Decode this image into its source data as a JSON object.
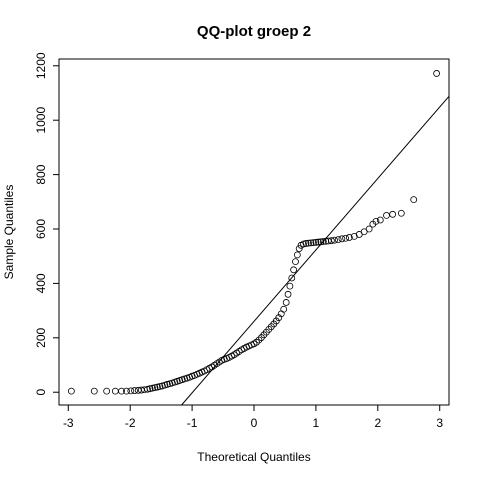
{
  "chart_data": {
    "type": "scatter",
    "title": "QQ-plot groep 2",
    "xlabel": "Theoretical Quantiles",
    "ylabel": "Sample Quantiles",
    "xlim": [
      -3.15,
      3.15
    ],
    "ylim": [
      -47,
      1225
    ],
    "xticks": [
      -3,
      -2,
      -1,
      0,
      1,
      2,
      3
    ],
    "yticks": [
      0,
      200,
      400,
      600,
      800,
      1000,
      1200
    ],
    "grid": false,
    "reference_line": {
      "x1": -1.17,
      "y1": -47,
      "x2": 3.15,
      "y2": 1088
    },
    "points": [
      {
        "x": -2.95,
        "y": 4
      },
      {
        "x": -2.58,
        "y": 4
      },
      {
        "x": -2.38,
        "y": 4
      },
      {
        "x": -2.24,
        "y": 4
      },
      {
        "x": -2.14,
        "y": 4
      },
      {
        "x": -2.06,
        "y": 4
      },
      {
        "x": -1.99,
        "y": 5
      },
      {
        "x": -1.93,
        "y": 6
      },
      {
        "x": -1.87,
        "y": 7
      },
      {
        "x": -1.82,
        "y": 8
      },
      {
        "x": -1.77,
        "y": 9
      },
      {
        "x": -1.72,
        "y": 11
      },
      {
        "x": -1.68,
        "y": 13
      },
      {
        "x": -1.64,
        "y": 15
      },
      {
        "x": -1.6,
        "y": 17
      },
      {
        "x": -1.56,
        "y": 19
      },
      {
        "x": -1.52,
        "y": 21
      },
      {
        "x": -1.48,
        "y": 23
      },
      {
        "x": -1.44,
        "y": 26
      },
      {
        "x": -1.4,
        "y": 29
      },
      {
        "x": -1.36,
        "y": 31
      },
      {
        "x": -1.32,
        "y": 34
      },
      {
        "x": -1.28,
        "y": 37
      },
      {
        "x": -1.24,
        "y": 40
      },
      {
        "x": -1.2,
        "y": 43
      },
      {
        "x": -1.16,
        "y": 46
      },
      {
        "x": -1.12,
        "y": 49
      },
      {
        "x": -1.08,
        "y": 52
      },
      {
        "x": -1.04,
        "y": 55
      },
      {
        "x": -1.0,
        "y": 59
      },
      {
        "x": -0.96,
        "y": 62
      },
      {
        "x": -0.92,
        "y": 66
      },
      {
        "x": -0.88,
        "y": 70
      },
      {
        "x": -0.84,
        "y": 74
      },
      {
        "x": -0.8,
        "y": 78
      },
      {
        "x": -0.76,
        "y": 83
      },
      {
        "x": -0.72,
        "y": 88
      },
      {
        "x": -0.68,
        "y": 93
      },
      {
        "x": -0.64,
        "y": 99
      },
      {
        "x": -0.6,
        "y": 105
      },
      {
        "x": -0.56,
        "y": 111
      },
      {
        "x": -0.52,
        "y": 117
      },
      {
        "x": -0.48,
        "y": 121
      },
      {
        "x": -0.44,
        "y": 124
      },
      {
        "x": -0.4,
        "y": 128
      },
      {
        "x": -0.36,
        "y": 133
      },
      {
        "x": -0.32,
        "y": 138
      },
      {
        "x": -0.28,
        "y": 144
      },
      {
        "x": -0.24,
        "y": 150
      },
      {
        "x": -0.2,
        "y": 156
      },
      {
        "x": -0.16,
        "y": 161
      },
      {
        "x": -0.12,
        "y": 166
      },
      {
        "x": -0.08,
        "y": 170
      },
      {
        "x": -0.04,
        "y": 174
      },
      {
        "x": 0.0,
        "y": 178
      },
      {
        "x": 0.04,
        "y": 184
      },
      {
        "x": 0.08,
        "y": 192
      },
      {
        "x": 0.12,
        "y": 201
      },
      {
        "x": 0.16,
        "y": 211
      },
      {
        "x": 0.2,
        "y": 221
      },
      {
        "x": 0.24,
        "y": 231
      },
      {
        "x": 0.28,
        "y": 241
      },
      {
        "x": 0.32,
        "y": 251
      },
      {
        "x": 0.36,
        "y": 262
      },
      {
        "x": 0.4,
        "y": 274
      },
      {
        "x": 0.44,
        "y": 288
      },
      {
        "x": 0.48,
        "y": 305
      },
      {
        "x": 0.52,
        "y": 330
      },
      {
        "x": 0.55,
        "y": 360
      },
      {
        "x": 0.58,
        "y": 390
      },
      {
        "x": 0.61,
        "y": 420
      },
      {
        "x": 0.64,
        "y": 450
      },
      {
        "x": 0.67,
        "y": 480
      },
      {
        "x": 0.7,
        "y": 505
      },
      {
        "x": 0.73,
        "y": 528
      },
      {
        "x": 0.76,
        "y": 540
      },
      {
        "x": 0.8,
        "y": 545
      },
      {
        "x": 0.84,
        "y": 547
      },
      {
        "x": 0.88,
        "y": 548
      },
      {
        "x": 0.92,
        "y": 549
      },
      {
        "x": 0.96,
        "y": 550
      },
      {
        "x": 1.0,
        "y": 551
      },
      {
        "x": 1.04,
        "y": 552
      },
      {
        "x": 1.08,
        "y": 553
      },
      {
        "x": 1.12,
        "y": 554
      },
      {
        "x": 1.16,
        "y": 555
      },
      {
        "x": 1.2,
        "y": 556
      },
      {
        "x": 1.25,
        "y": 557
      },
      {
        "x": 1.3,
        "y": 559
      },
      {
        "x": 1.36,
        "y": 561
      },
      {
        "x": 1.42,
        "y": 564
      },
      {
        "x": 1.48,
        "y": 566
      },
      {
        "x": 1.54,
        "y": 569
      },
      {
        "x": 1.62,
        "y": 573
      },
      {
        "x": 1.7,
        "y": 580
      },
      {
        "x": 1.78,
        "y": 590
      },
      {
        "x": 1.86,
        "y": 600
      },
      {
        "x": 1.92,
        "y": 618
      },
      {
        "x": 1.97,
        "y": 628
      },
      {
        "x": 2.04,
        "y": 633
      },
      {
        "x": 2.14,
        "y": 650
      },
      {
        "x": 2.24,
        "y": 654
      },
      {
        "x": 2.38,
        "y": 658
      },
      {
        "x": 2.58,
        "y": 708
      },
      {
        "x": 2.95,
        "y": 1172
      }
    ]
  }
}
